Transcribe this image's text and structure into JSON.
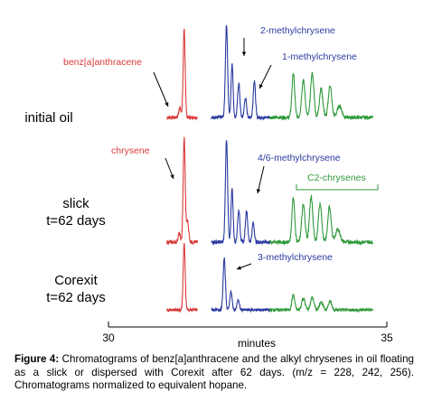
{
  "figure": {
    "caption_label": "Figure 4:",
    "caption_text": "Chromatograms of benz[a]anthracene and the alkyl chrysenes in oil floating as a slick or dispersed with Corexit after 62 days. (m/z = 228, 242, 256). Chromatograms normalized to equivalent hopane."
  },
  "colors": {
    "red": "#d93a3a",
    "blue": "#2a3aa0",
    "green": "#2f9a3a",
    "axis": "#000000"
  },
  "chart_data": {
    "type": "line",
    "xlabel": "minutes",
    "xlim": [
      30,
      35
    ],
    "xticks": [
      "30",
      "35"
    ],
    "panels": [
      {
        "label_lines": [
          "initial oil"
        ],
        "annotations": [
          {
            "text": "benz[a]anthracene",
            "color": "red",
            "target_x": 31.36
          },
          {
            "text": "2-methylchrysene",
            "color": "blue",
            "target_x": 32.22
          },
          {
            "text": "1-methylchrysene",
            "color": "blue",
            "target_x": 32.62
          }
        ],
        "peaks": [
          {
            "series": "red",
            "x": 31.36,
            "h": 0.9,
            "w": 0.018
          },
          {
            "series": "red",
            "x": 31.28,
            "h": 0.1,
            "w": 0.02
          },
          {
            "series": "blue",
            "x": 32.12,
            "h": 0.95,
            "w": 0.02
          },
          {
            "series": "blue",
            "x": 32.22,
            "h": 0.55,
            "w": 0.018
          },
          {
            "series": "blue",
            "x": 32.34,
            "h": 0.35,
            "w": 0.02
          },
          {
            "series": "blue",
            "x": 32.46,
            "h": 0.2,
            "w": 0.02
          },
          {
            "series": "blue",
            "x": 32.62,
            "h": 0.38,
            "w": 0.02
          },
          {
            "series": "green",
            "x": 33.32,
            "h": 0.45,
            "w": 0.025
          },
          {
            "series": "green",
            "x": 33.5,
            "h": 0.38,
            "w": 0.03
          },
          {
            "series": "green",
            "x": 33.66,
            "h": 0.45,
            "w": 0.03
          },
          {
            "series": "green",
            "x": 33.82,
            "h": 0.3,
            "w": 0.03
          },
          {
            "series": "green",
            "x": 33.98,
            "h": 0.33,
            "w": 0.03
          },
          {
            "series": "green",
            "x": 34.15,
            "h": 0.12,
            "w": 0.04
          }
        ]
      },
      {
        "label_lines": [
          "slick",
          "t=62 days"
        ],
        "annotations": [
          {
            "text": "chrysene",
            "color": "red",
            "target_x": 31.36
          },
          {
            "text": "4/6-methylchrysene",
            "color": "blue",
            "target_x": 32.36
          },
          {
            "text": "C2-chrysenes",
            "color": "green",
            "target_x": 33.6
          }
        ],
        "peaks": [
          {
            "series": "red",
            "x": 31.36,
            "h": 0.98,
            "w": 0.018
          },
          {
            "series": "red",
            "x": 31.42,
            "h": 0.2,
            "w": 0.02
          },
          {
            "series": "red",
            "x": 31.27,
            "h": 0.08,
            "w": 0.02
          },
          {
            "series": "blue",
            "x": 32.12,
            "h": 0.95,
            "w": 0.02
          },
          {
            "series": "blue",
            "x": 32.22,
            "h": 0.5,
            "w": 0.018
          },
          {
            "series": "blue",
            "x": 32.34,
            "h": 0.3,
            "w": 0.02
          },
          {
            "series": "blue",
            "x": 32.48,
            "h": 0.3,
            "w": 0.02
          },
          {
            "series": "blue",
            "x": 32.6,
            "h": 0.18,
            "w": 0.02
          },
          {
            "series": "green",
            "x": 33.32,
            "h": 0.42,
            "w": 0.025
          },
          {
            "series": "green",
            "x": 33.5,
            "h": 0.35,
            "w": 0.03
          },
          {
            "series": "green",
            "x": 33.64,
            "h": 0.42,
            "w": 0.03
          },
          {
            "series": "green",
            "x": 33.8,
            "h": 0.36,
            "w": 0.03
          },
          {
            "series": "green",
            "x": 33.97,
            "h": 0.33,
            "w": 0.03
          },
          {
            "series": "green",
            "x": 34.12,
            "h": 0.12,
            "w": 0.04
          }
        ]
      },
      {
        "label_lines": [
          "Corexit",
          "t=62 days"
        ],
        "annotations": [
          {
            "text": "3-methylchrysene",
            "color": "blue",
            "target_x": 32.08
          }
        ],
        "peaks": [
          {
            "series": "red",
            "x": 31.36,
            "h": 0.8,
            "w": 0.018
          },
          {
            "series": "blue",
            "x": 32.08,
            "h": 0.62,
            "w": 0.02
          },
          {
            "series": "blue",
            "x": 32.2,
            "h": 0.22,
            "w": 0.02
          },
          {
            "series": "blue",
            "x": 32.33,
            "h": 0.12,
            "w": 0.02
          },
          {
            "series": "green",
            "x": 33.32,
            "h": 0.18,
            "w": 0.025
          },
          {
            "series": "green",
            "x": 33.5,
            "h": 0.14,
            "w": 0.03
          },
          {
            "series": "green",
            "x": 33.66,
            "h": 0.15,
            "w": 0.03
          },
          {
            "series": "green",
            "x": 33.82,
            "h": 0.1,
            "w": 0.03
          },
          {
            "series": "green",
            "x": 33.98,
            "h": 0.1,
            "w": 0.03
          }
        ]
      }
    ]
  }
}
